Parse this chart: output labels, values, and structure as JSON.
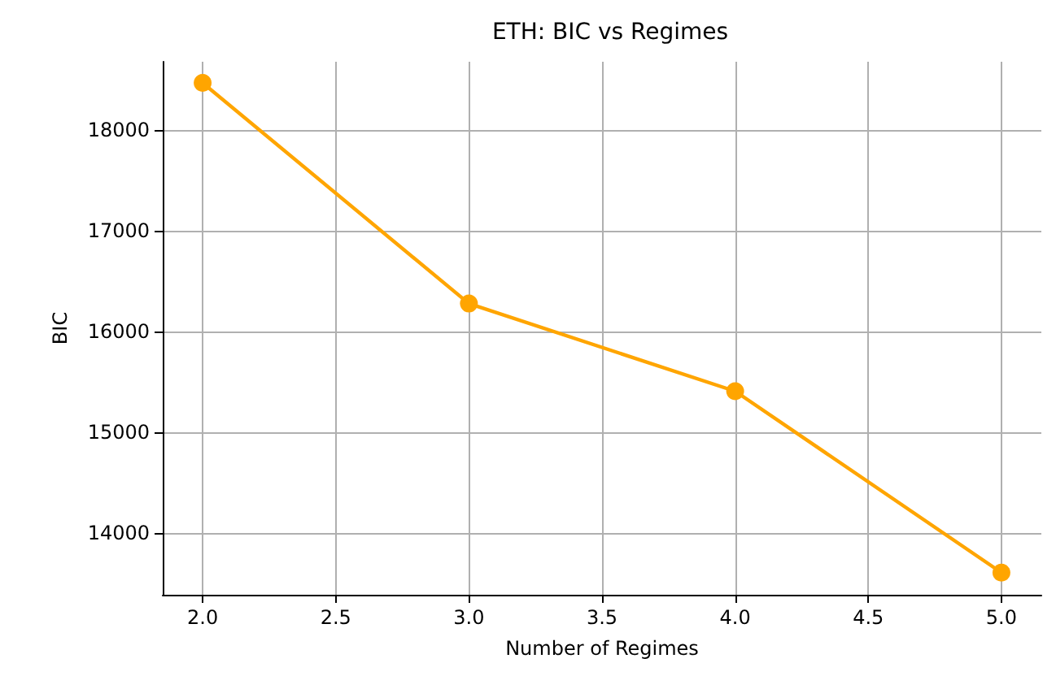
{
  "chart_data": {
    "type": "line",
    "title": "ETH: BIC vs Regimes",
    "xlabel": "Number of Regimes",
    "ylabel": "BIC",
    "x": [
      2,
      3,
      4,
      5
    ],
    "series": [
      {
        "color": "#ffa500",
        "values": [
          18470,
          16280,
          15410,
          13610
        ]
      }
    ],
    "xlim": [
      1.85,
      5.15
    ],
    "xticks": [
      {
        "value": 2,
        "label": "2.0"
      },
      {
        "value": 2.5,
        "label": "2.5"
      },
      {
        "value": 3,
        "label": "3.0"
      },
      {
        "value": 3.5,
        "label": "3.5"
      },
      {
        "value": 4,
        "label": "4.0"
      },
      {
        "value": 4.5,
        "label": "4.5"
      },
      {
        "value": 5,
        "label": "5.0"
      }
    ],
    "ylim": [
      13390,
      18680
    ],
    "yticks": [
      14000,
      15000,
      16000,
      17000,
      18000
    ],
    "grid": true,
    "marker": "circle",
    "line_style": "solid"
  }
}
